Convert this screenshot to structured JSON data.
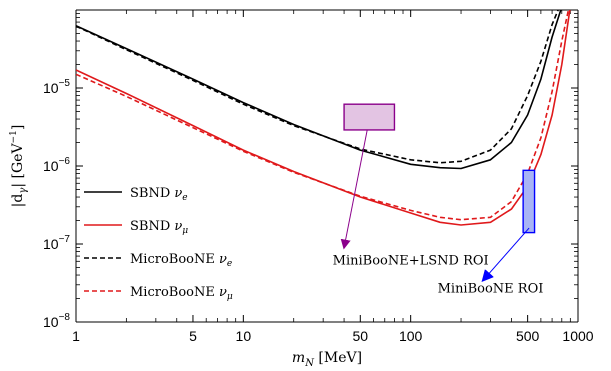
{
  "chart_data": {
    "type": "line",
    "xscale": "log",
    "yscale": "log",
    "xlim": [
      1,
      1000
    ],
    "ylim": [
      1e-08,
      0.0001
    ],
    "xlabel": {
      "main": "m",
      "sub": "N",
      "unit": " [MeV]"
    },
    "ylabel": {
      "main": "|d",
      "sub": "γ",
      "close": "|",
      "unit": " [GeV",
      "sup": "−1",
      "unit_close": "]"
    },
    "x_ticks": [
      {
        "value": 1,
        "label": "1"
      },
      {
        "value": 5,
        "label": "5"
      },
      {
        "value": 10,
        "label": "10"
      },
      {
        "value": 50,
        "label": "50"
      },
      {
        "value": 100,
        "label": "100"
      },
      {
        "value": 500,
        "label": "500"
      },
      {
        "value": 1000,
        "label": "1000"
      }
    ],
    "y_ticks": [
      {
        "value": 1e-08,
        "base": "10",
        "exp": "−8"
      },
      {
        "value": 1e-07,
        "base": "10",
        "exp": "−7"
      },
      {
        "value": 1e-06,
        "base": "10",
        "exp": "−6"
      },
      {
        "value": 1e-05,
        "base": "10",
        "exp": "−5"
      }
    ],
    "series": [
      {
        "name": "SBND ν_e",
        "label_main": "SBND ",
        "label_nu": "ν",
        "label_sub": "e",
        "color": "#000000",
        "dash": "solid",
        "x": [
          1,
          2,
          5,
          10,
          20,
          50,
          100,
          150,
          200,
          300,
          400,
          500,
          600,
          700,
          800
        ],
        "y": [
          6.3e-05,
          3.2e-05,
          1.3e-05,
          6.5e-06,
          3.4e-06,
          1.6e-06,
          1.05e-06,
          9.5e-07,
          9.3e-07,
          1.2e-06,
          2e-06,
          4.5e-06,
          1.3e-05,
          4.5e-05,
          0.00011
        ]
      },
      {
        "name": "SBND ν_μ",
        "label_main": "SBND ",
        "label_nu": "ν",
        "label_sub": "μ",
        "color": "#e0191b",
        "dash": "solid",
        "x": [
          1,
          2,
          5,
          10,
          20,
          50,
          100,
          150,
          200,
          300,
          400,
          500,
          600,
          700,
          800,
          900
        ],
        "y": [
          1.7e-05,
          8.5e-06,
          3.3e-06,
          1.6e-06,
          8.5e-07,
          4e-07,
          2.5e-07,
          1.9e-07,
          1.75e-07,
          1.9e-07,
          2.8e-07,
          5.5e-07,
          1.4e-06,
          4.5e-06,
          2e-05,
          0.00011
        ]
      },
      {
        "name": "MicroBooNE ν_e",
        "label_main": "MicroBooNE ",
        "label_nu": "ν",
        "label_sub": "e",
        "color": "#000000",
        "dash": "dashed",
        "x": [
          1,
          2,
          5,
          10,
          20,
          50,
          100,
          150,
          200,
          300,
          400,
          500,
          600,
          700,
          800
        ],
        "y": [
          6.2e-05,
          3.1e-05,
          1.25e-05,
          6.2e-06,
          3.3e-06,
          1.65e-06,
          1.2e-06,
          1.1e-06,
          1.15e-06,
          1.6e-06,
          3e-06,
          8e-06,
          2.2e-05,
          6.5e-05,
          0.00013
        ]
      },
      {
        "name": "MicroBooNE ν_μ",
        "label_main": "MicroBooNE ",
        "label_nu": "ν",
        "label_sub": "μ",
        "color": "#e0191b",
        "dash": "dashed",
        "x": [
          1,
          2,
          5,
          10,
          20,
          50,
          100,
          150,
          200,
          300,
          400,
          500,
          600,
          700,
          800,
          900
        ],
        "y": [
          1.5e-05,
          7.8e-06,
          3.1e-06,
          1.55e-06,
          8.3e-07,
          4.1e-07,
          2.7e-07,
          2.2e-07,
          2.05e-07,
          2.2e-07,
          3.5e-07,
          8e-07,
          2.3e-06,
          9e-06,
          4e-05,
          0.00013
        ]
      }
    ],
    "legend_placement": "bottom-left",
    "regions": [
      {
        "label": "MiniBooNE+LSND ROI",
        "x_range": [
          40,
          80
        ],
        "y_range": [
          2.9e-06,
          6.2e-06
        ],
        "fill": "#e3c4e3",
        "stroke": "#8b008b",
        "arrow_color": "#8b008b",
        "arrow_from": [
          55,
          2.9e-06
        ],
        "arrow_to": [
          40,
          9e-08
        ],
        "label_at": [
          100,
          5.5e-08
        ]
      },
      {
        "label": "MiniBooNE ROI",
        "x_range": [
          470,
          550
        ],
        "y_range": [
          1.4e-07,
          8.8e-07
        ],
        "fill": "#a8b4f5",
        "stroke": "#0000ff",
        "arrow_color": "#0000ff",
        "arrow_from": [
          510,
          1.6e-07
        ],
        "arrow_to": [
          270,
          3.4e-08
        ],
        "label_at": [
          300,
          2.4e-08
        ]
      }
    ],
    "grid": false
  }
}
